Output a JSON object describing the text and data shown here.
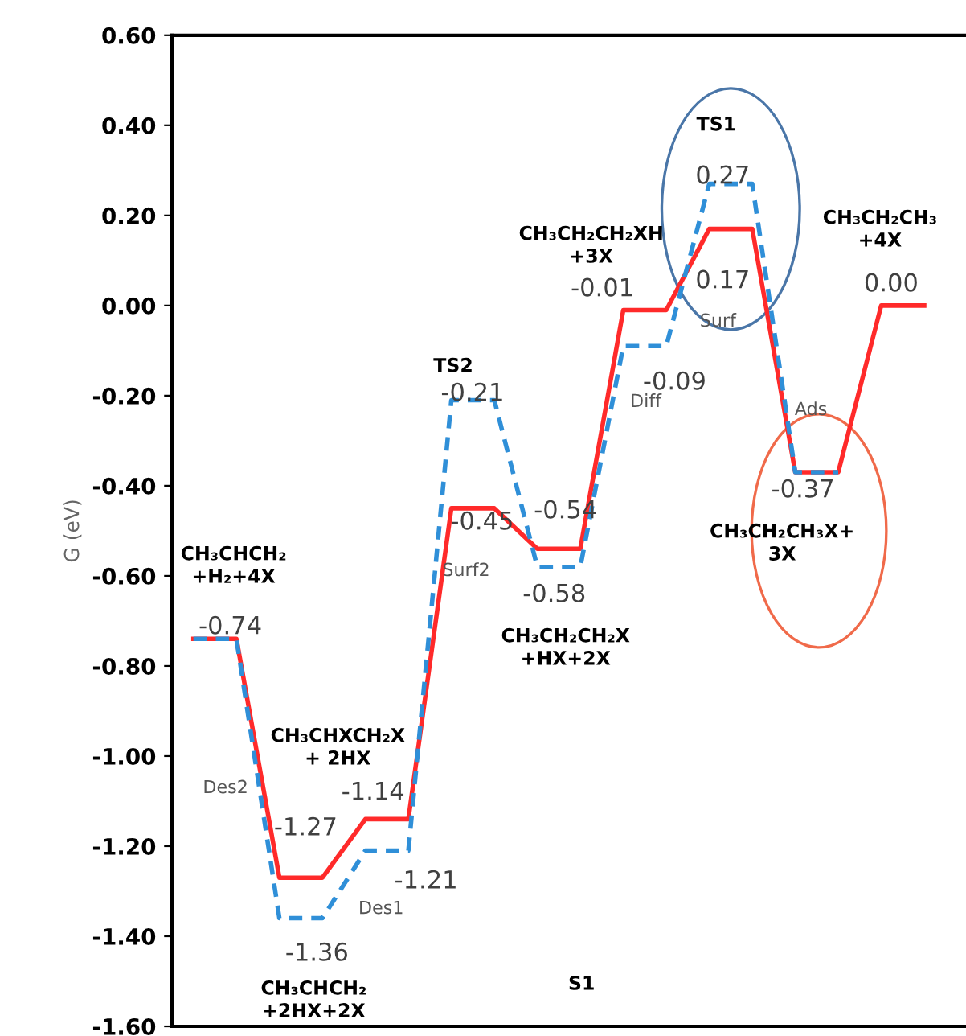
{
  "chart_data": {
    "type": "line",
    "ylabel": "G (eV)",
    "categories": [
      null,
      null,
      null,
      null,
      null,
      null,
      null,
      null,
      null,
      null,
      null,
      null,
      null,
      null,
      null,
      null,
      null,
      null
    ],
    "series": [
      {
        "color": "#2f8fd8",
        "line_style": "dashed",
        "values": [
          -0.74,
          -0.74,
          -1.36,
          -1.36,
          -1.21,
          -1.21,
          -0.21,
          -0.21,
          -0.58,
          -0.58,
          -0.09,
          -0.09,
          0.27,
          0.27,
          -0.37,
          -0.37,
          null,
          null
        ],
        "value_labels": [
          null,
          null,
          "-1.36",
          null,
          "-1.21",
          null,
          "-0.21",
          null,
          "-0.58",
          null,
          "-0.09",
          null,
          "0.27",
          null,
          null,
          null,
          null,
          null
        ]
      },
      {
        "color": "#ff2a2a",
        "line_style": "solid",
        "values": [
          -0.74,
          -0.74,
          -1.27,
          -1.27,
          -1.14,
          -1.14,
          -0.45,
          -0.45,
          -0.54,
          -0.54,
          -0.01,
          -0.01,
          0.17,
          0.17,
          -0.37,
          -0.37,
          0.0,
          0.0
        ],
        "value_labels": [
          "-0.74",
          null,
          "-1.27",
          null,
          "-1.14",
          null,
          "-0.45",
          null,
          "-0.54",
          null,
          "-0.01",
          null,
          "0.17",
          null,
          "-0.37",
          null,
          "0.00",
          null
        ]
      }
    ],
    "ylim": [
      -1.6,
      0.6
    ],
    "yticks": [
      {
        "value": -1.6,
        "label": "-1.60"
      },
      {
        "value": -1.4,
        "label": "-1.40"
      },
      {
        "value": -1.2,
        "label": "-1.20"
      },
      {
        "value": -1.0,
        "label": "-1.00"
      },
      {
        "value": -0.8,
        "label": "-0.80"
      },
      {
        "value": -0.6,
        "label": "-0.60"
      },
      {
        "value": -0.4,
        "label": "-0.40"
      },
      {
        "value": -0.2,
        "label": "-0.20"
      },
      {
        "value": 0.0,
        "label": "0.00"
      },
      {
        "value": 0.2,
        "label": "0.20"
      },
      {
        "value": 0.4,
        "label": "0.40"
      },
      {
        "value": 0.6,
        "label": "0.60"
      }
    ],
    "tick_labels": "y",
    "grid": false,
    "legend": false,
    "marker": "none",
    "annotations": [
      "CH₃CHCH₂\n+H₂+4X",
      "CH₃CHXCH₂X\n+ 2HX",
      "CH₃CHCH₂\n+2HX+2X",
      "TS2",
      "CH₃CH₂CH₂X\n+HX+2X",
      "CH₃CH₂CH₂XH\n+3X",
      "TS1",
      "CH₃CH₂CH₃\n+4X",
      "CH₃CH₂CH₃X+\n3X",
      "Des2",
      "Des1",
      "Surf2",
      "Diff",
      "Surf",
      "Ads",
      "S1"
    ]
  }
}
